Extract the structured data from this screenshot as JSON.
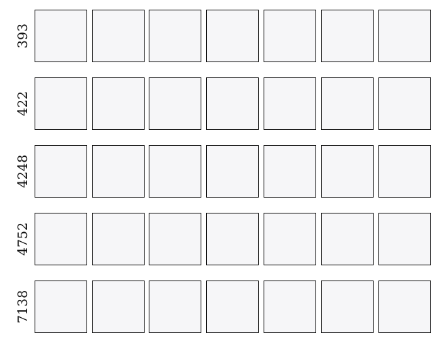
{
  "rows": [
    {
      "label": "393"
    },
    {
      "label": "422"
    },
    {
      "label": "4248"
    },
    {
      "label": "4752"
    },
    {
      "label": "7138"
    }
  ]
}
